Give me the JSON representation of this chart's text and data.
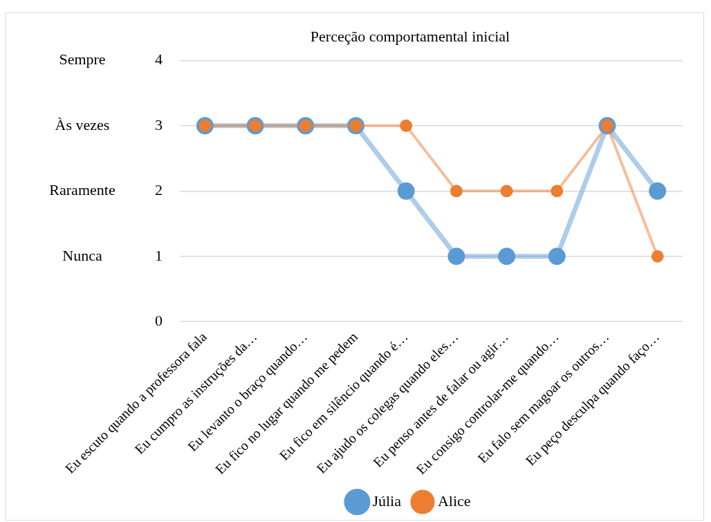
{
  "chart_data": {
    "type": "line",
    "title": "Perceção comportamental inicial",
    "categories": [
      "Eu escuto quando a professora fala",
      "Eu cumpro as instruções da…",
      "Eu levanto o braço quando…",
      "Eu fico no lugar quando me pedem",
      "Eu fico em silêncio quando é…",
      "Eu ajudo os colegas quando eles…",
      "Eu penso antes de falar ou agir…",
      "Eu consigo controlar-me quando…",
      "Eu falo sem magoar os outros…",
      "Eu peço desculpa quando faço…"
    ],
    "series": [
      {
        "name": "Júlia",
        "color": "#5b9bd5",
        "values": [
          3,
          3,
          3,
          3,
          2,
          1,
          1,
          1,
          3,
          2
        ]
      },
      {
        "name": "Alice",
        "color": "#ed7d31",
        "values": [
          3,
          3,
          3,
          3,
          3,
          2,
          2,
          2,
          3,
          1
        ]
      }
    ],
    "ylim": [
      0,
      4
    ],
    "yticks": [
      0,
      1,
      2,
      3,
      4
    ],
    "grid": "y",
    "legend": "bottom",
    "marker": "circle",
    "line_style": "solid",
    "annotations": [
      "Sempre",
      "Às vezes",
      "Raramente",
      "Nunca"
    ]
  }
}
